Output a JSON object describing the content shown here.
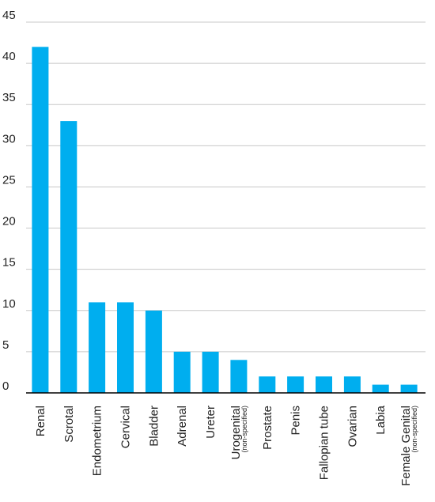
{
  "chart_data": {
    "type": "bar",
    "categories": [
      {
        "label": "Renal",
        "sublabel": ""
      },
      {
        "label": "Scrotal",
        "sublabel": ""
      },
      {
        "label": "Endometrium",
        "sublabel": ""
      },
      {
        "label": "Cervical",
        "sublabel": ""
      },
      {
        "label": "Bladder",
        "sublabel": ""
      },
      {
        "label": "Adrenal",
        "sublabel": ""
      },
      {
        "label": "Ureter",
        "sublabel": ""
      },
      {
        "label": "Urogenital",
        "sublabel": "(non-specified)"
      },
      {
        "label": "Prostate",
        "sublabel": ""
      },
      {
        "label": "Penis",
        "sublabel": ""
      },
      {
        "label": "Fallopian tube",
        "sublabel": ""
      },
      {
        "label": "Ovarian",
        "sublabel": ""
      },
      {
        "label": "Labia",
        "sublabel": ""
      },
      {
        "label": "Female Genital",
        "sublabel": "(non-specified)"
      }
    ],
    "values": [
      42,
      33,
      11,
      11,
      10,
      5,
      5,
      4,
      2,
      2,
      2,
      2,
      1,
      1
    ],
    "yticks": [
      "0",
      "5",
      "10",
      "15",
      "20",
      "25",
      "30",
      "35",
      "40",
      "45"
    ],
    "ylim": [
      0,
      45
    ],
    "grid": true,
    "bar_color": "#00aeef",
    "title": "",
    "xlabel": "",
    "ylabel": ""
  }
}
